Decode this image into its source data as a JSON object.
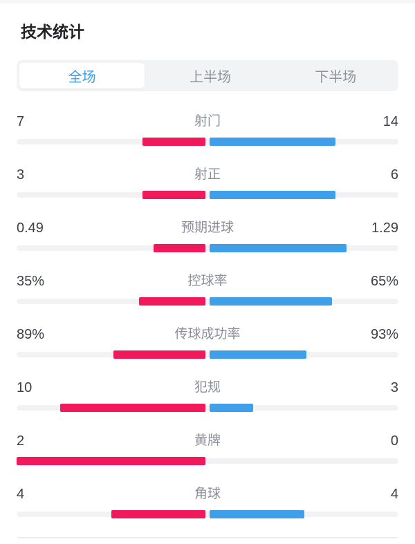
{
  "title": "技术统计",
  "tabs": [
    {
      "label": "全场",
      "active": true
    },
    {
      "label": "上半场",
      "active": false
    },
    {
      "label": "下半场",
      "active": false
    }
  ],
  "colors": {
    "home_bar": "#F0195C",
    "away_bar": "#3F9FE8",
    "tab_active_text": "#3D9BE4",
    "tab_inactive_text": "#8E939D",
    "label_text": "#8A8F99",
    "value_text": "#3C4047"
  },
  "chart_data": {
    "type": "bar",
    "orientation": "horizontal-paired",
    "note": "Each row: left (home, red) and right (away, blue) bars grow outward from center; bar length = value / (home+away) of half track width",
    "legend_position": "none",
    "rows": [
      {
        "label": "射门",
        "home": "7",
        "away": "14",
        "home_val": 7,
        "away_val": 14
      },
      {
        "label": "射正",
        "home": "3",
        "away": "6",
        "home_val": 3,
        "away_val": 6
      },
      {
        "label": "预期进球",
        "home": "0.49",
        "away": "1.29",
        "home_val": 0.49,
        "away_val": 1.29
      },
      {
        "label": "控球率",
        "home": "35%",
        "away": "65%",
        "home_val": 35,
        "away_val": 65
      },
      {
        "label": "传球成功率",
        "home": "89%",
        "away": "93%",
        "home_val": 89,
        "away_val": 93
      },
      {
        "label": "犯规",
        "home": "10",
        "away": "3",
        "home_val": 10,
        "away_val": 3
      },
      {
        "label": "黄牌",
        "home": "2",
        "away": "0",
        "home_val": 2,
        "away_val": 0
      },
      {
        "label": "角球",
        "home": "4",
        "away": "4",
        "home_val": 4,
        "away_val": 4
      }
    ]
  }
}
